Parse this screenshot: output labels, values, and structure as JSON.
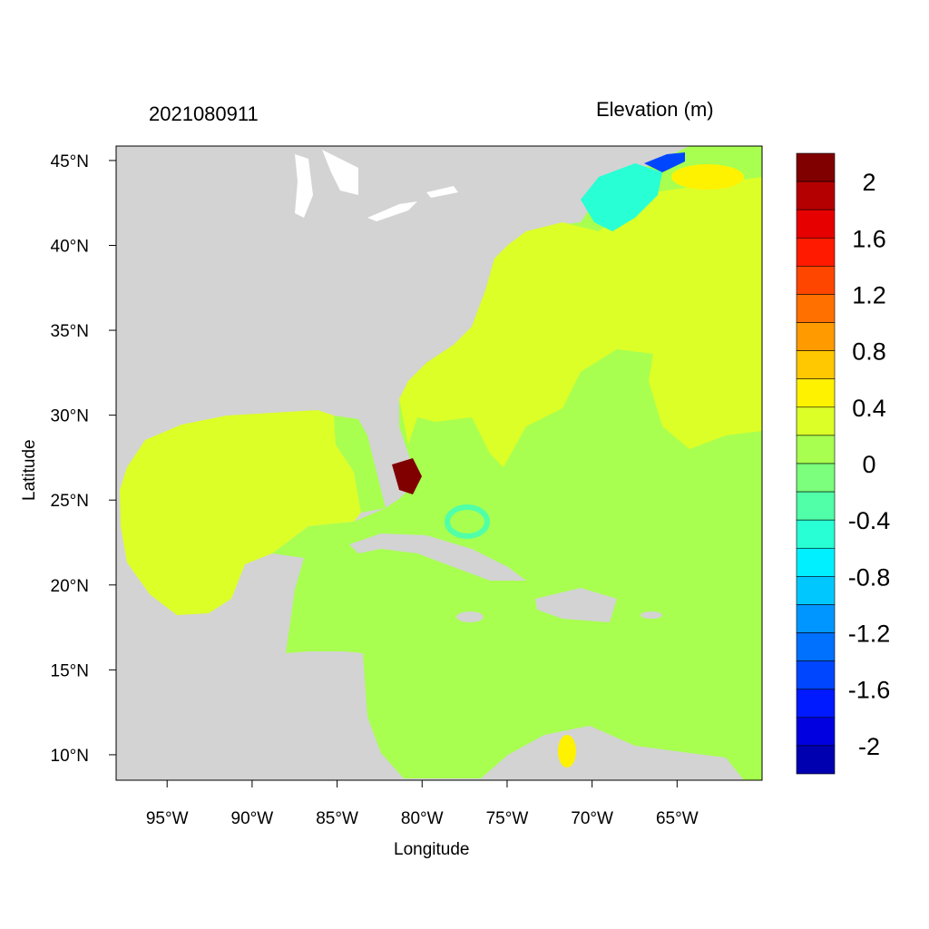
{
  "title_left": "2021080911",
  "title_right": "Elevation (m)",
  "x_axis": {
    "label": "Longitude",
    "ticks": [
      "95°W",
      "90°W",
      "85°W",
      "80°W",
      "75°W",
      "70°W",
      "65°W"
    ],
    "tick_values": [
      -95,
      -90,
      -85,
      -80,
      -75,
      -70,
      -65
    ],
    "range": [
      -98,
      -60
    ]
  },
  "y_axis": {
    "label": "Latitude",
    "ticks": [
      "45°N",
      "40°N",
      "35°N",
      "30°N",
      "25°N",
      "20°N",
      "15°N",
      "10°N"
    ],
    "tick_values": [
      45,
      40,
      35,
      30,
      25,
      20,
      15,
      10
    ],
    "range": [
      8.5,
      45.85
    ]
  },
  "colorbar": {
    "labels": [
      "2",
      "1.6",
      "1.2",
      "0.8",
      "0.4",
      "0",
      "-0.4",
      "-0.8",
      "-1.2",
      "-1.6",
      "-2"
    ],
    "colors": [
      "#800000",
      "#b40000",
      "#e60000",
      "#ff1a00",
      "#ff4600",
      "#ff7000",
      "#ff9a00",
      "#ffc800",
      "#fff200",
      "#dcff28",
      "#a8ff50",
      "#7cff7c",
      "#50ffa8",
      "#28ffd4",
      "#00f0ff",
      "#00c8ff",
      "#0096ff",
      "#0070ff",
      "#0046ff",
      "#001aff",
      "#0000e0",
      "#0000b0"
    ]
  },
  "colors": {
    "land": "#d3d3d3",
    "lakes": "#ffffff"
  }
}
